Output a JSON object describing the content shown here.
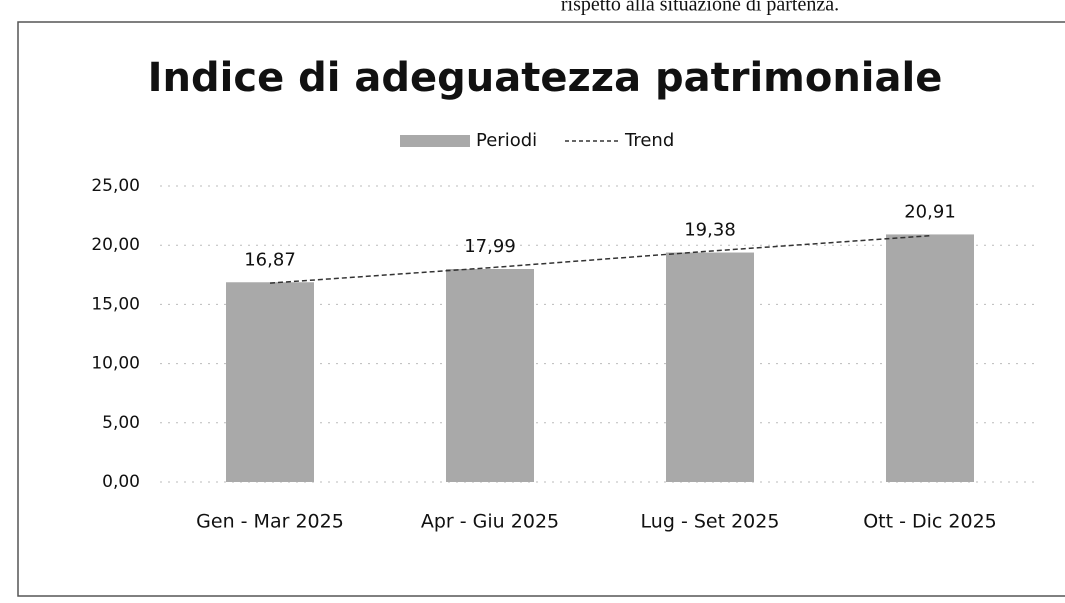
{
  "note": "rispetto alla situazione di partenza.",
  "chart_data": {
    "type": "bar",
    "title": "Indice di adeguatezza patrimoniale",
    "categories": [
      "Gen - Mar 2025",
      "Apr - Giu 2025",
      "Lug - Set 2025",
      "Ott - Dic 2025"
    ],
    "series": [
      {
        "name": "Periodi",
        "color": "#a9a9a9",
        "values": [
          16.87,
          17.99,
          19.38,
          20.91
        ],
        "value_labels": [
          "16,87",
          "17,99",
          "19,38",
          "20,91"
        ]
      },
      {
        "name": "Trend",
        "type": "line",
        "color": "#333333",
        "values": [
          16.8,
          18.1,
          19.5,
          20.8
        ]
      }
    ],
    "ylim": [
      0,
      25
    ],
    "yticks": [
      {
        "value": 0,
        "label": "0,00"
      },
      {
        "value": 5,
        "label": "5,00"
      },
      {
        "value": 10,
        "label": "10,00"
      },
      {
        "value": 15,
        "label": "15,00"
      },
      {
        "value": 20,
        "label": "20,00"
      },
      {
        "value": 25,
        "label": "25,00"
      }
    ],
    "grid": true,
    "legend": "top"
  }
}
